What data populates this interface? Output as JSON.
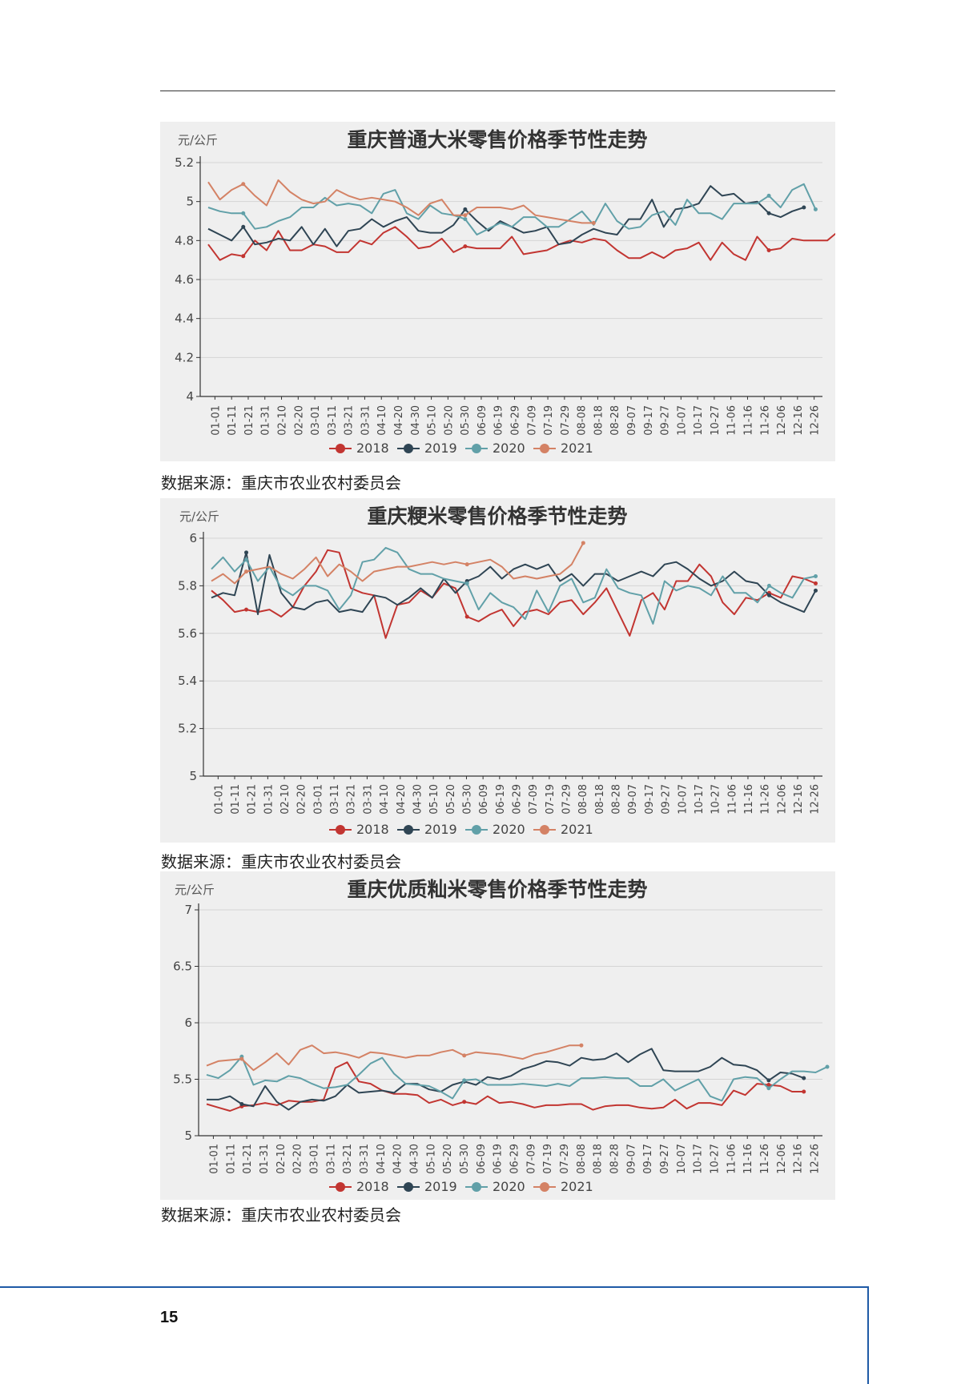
{
  "page_number": "15",
  "colors": {
    "2018": "#c23531",
    "2019": "#2f4554",
    "2020": "#61a0a8",
    "2021": "#d48265",
    "panel": "#efefef",
    "grid": "#d4d4d4"
  },
  "x_labels": [
    "01-01",
    "01-11",
    "01-21",
    "01-31",
    "02-10",
    "02-20",
    "03-01",
    "03-11",
    "03-21",
    "03-31",
    "04-10",
    "04-20",
    "04-30",
    "05-10",
    "05-20",
    "05-30",
    "06-09",
    "06-19",
    "06-29",
    "07-09",
    "07-19",
    "07-29",
    "08-08",
    "08-18",
    "08-28",
    "09-07",
    "09-17",
    "09-27",
    "10-07",
    "10-17",
    "10-27",
    "11-06",
    "11-16",
    "11-26",
    "12-06",
    "12-16",
    "12-26"
  ],
  "charts": [
    {
      "title": "重庆普通大米零售价格季节性走势",
      "unit": "元/公斤",
      "source": "数据来源：重庆市农业农村委员会"
    },
    {
      "title": "重庆粳米零售价格季节性走势",
      "unit": "元/公斤",
      "source": "数据来源：重庆市农业农村委员会"
    },
    {
      "title": "重庆优质籼米零售价格季节性走势",
      "unit": "元/公斤",
      "source": "数据来源：重庆市农业农村委员会"
    }
  ],
  "chart_data": [
    {
      "type": "line",
      "title": "重庆普通大米零售价格季节性走势",
      "ylabel": "元/公斤",
      "ylim": [
        4,
        5.2
      ],
      "yticks": [
        4,
        4.2,
        4.4,
        4.6,
        4.8,
        5,
        5.2
      ],
      "ytick_labels": [
        "4",
        "4.2",
        "4.4",
        "4.6",
        "4.8",
        "5",
        "5.2"
      ],
      "legend": "bottom",
      "grid": true,
      "series": [
        {
          "name": "2018",
          "values": [
            4.78,
            4.7,
            4.73,
            4.72,
            4.8,
            4.75,
            4.85,
            4.75,
            4.75,
            4.78,
            4.77,
            4.74,
            4.74,
            4.8,
            4.78,
            4.84,
            4.87,
            4.82,
            4.76,
            4.77,
            4.81,
            4.74,
            4.77,
            4.76,
            4.76,
            4.76,
            4.82,
            4.73,
            4.74,
            4.75,
            4.78,
            4.8,
            4.79,
            4.81,
            4.8,
            4.75,
            4.71,
            4.71,
            4.74,
            4.71,
            4.75,
            4.76,
            4.79,
            4.7,
            4.79,
            4.73,
            4.7,
            4.82,
            4.75,
            4.76,
            4.81,
            4.8,
            4.8,
            4.8,
            4.85
          ]
        },
        {
          "name": "2019",
          "values": [
            4.86,
            4.83,
            4.8,
            4.87,
            4.78,
            4.79,
            4.81,
            4.8,
            4.87,
            4.78,
            4.86,
            4.77,
            4.85,
            4.86,
            4.91,
            4.87,
            4.9,
            4.92,
            4.85,
            4.84,
            4.84,
            4.88,
            4.96,
            4.9,
            4.85,
            4.9,
            4.87,
            4.84,
            4.85,
            4.87,
            4.78,
            4.79,
            4.83,
            4.86,
            4.84,
            4.83,
            4.91,
            4.91,
            5.01,
            4.87,
            4.96,
            4.97,
            4.99,
            5.08,
            5.03,
            5.04,
            4.99,
            5.0,
            4.94,
            4.92,
            4.95,
            4.97
          ]
        },
        {
          "name": "2020",
          "values": [
            4.97,
            4.95,
            4.94,
            4.94,
            4.86,
            4.87,
            4.9,
            4.92,
            4.97,
            4.97,
            5.02,
            4.98,
            4.99,
            4.98,
            4.94,
            5.04,
            5.06,
            4.94,
            4.91,
            4.98,
            4.94,
            4.93,
            4.91,
            4.83,
            4.86,
            4.89,
            4.87,
            4.92,
            4.92,
            4.87,
            4.87,
            4.91,
            4.95,
            4.88,
            4.99,
            4.9,
            4.86,
            4.87,
            4.93,
            4.95,
            4.88,
            5.01,
            4.94,
            4.94,
            4.91,
            4.99,
            4.99,
            4.99,
            5.03,
            4.97,
            5.06,
            5.09,
            4.96
          ]
        },
        {
          "name": "2021",
          "values": [
            5.1,
            5.01,
            5.06,
            5.09,
            5.03,
            4.98,
            5.11,
            5.05,
            5.01,
            4.99,
            5.0,
            5.06,
            5.03,
            5.01,
            5.02,
            5.01,
            5.0,
            4.97,
            4.93,
            4.99,
            5.01,
            4.93,
            4.93,
            4.97,
            4.97,
            4.97,
            4.96,
            4.98,
            4.93,
            4.92,
            4.91,
            4.9,
            4.89,
            4.89
          ]
        }
      ]
    },
    {
      "type": "line",
      "title": "重庆粳米零售价格季节性走势",
      "ylabel": "元/公斤",
      "ylim": [
        5,
        6
      ],
      "yticks": [
        5,
        5.2,
        5.4,
        5.6,
        5.8,
        6
      ],
      "ytick_labels": [
        "5",
        "5.2",
        "5.4",
        "5.6",
        "5.8",
        "6"
      ],
      "legend": "bottom",
      "grid": true,
      "series": [
        {
          "name": "2018",
          "values": [
            5.78,
            5.74,
            5.69,
            5.7,
            5.69,
            5.7,
            5.67,
            5.71,
            5.8,
            5.86,
            5.95,
            5.94,
            5.79,
            5.77,
            5.76,
            5.58,
            5.72,
            5.73,
            5.78,
            5.75,
            5.81,
            5.79,
            5.67,
            5.65,
            5.68,
            5.7,
            5.63,
            5.69,
            5.7,
            5.68,
            5.73,
            5.74,
            5.68,
            5.73,
            5.79,
            5.69,
            5.59,
            5.74,
            5.77,
            5.7,
            5.82,
            5.82,
            5.89,
            5.84,
            5.73,
            5.68,
            5.75,
            5.74,
            5.77,
            5.75,
            5.84,
            5.83,
            5.81
          ]
        },
        {
          "name": "2019",
          "values": [
            5.75,
            5.77,
            5.76,
            5.94,
            5.68,
            5.93,
            5.77,
            5.71,
            5.7,
            5.73,
            5.74,
            5.69,
            5.7,
            5.69,
            5.76,
            5.75,
            5.72,
            5.75,
            5.79,
            5.75,
            5.83,
            5.77,
            5.82,
            5.84,
            5.88,
            5.83,
            5.87,
            5.89,
            5.87,
            5.89,
            5.82,
            5.85,
            5.8,
            5.85,
            5.85,
            5.82,
            5.84,
            5.86,
            5.84,
            5.89,
            5.9,
            5.87,
            5.83,
            5.8,
            5.82,
            5.86,
            5.82,
            5.81,
            5.76,
            5.73,
            5.71,
            5.69,
            5.78
          ]
        },
        {
          "name": "2020",
          "values": [
            5.87,
            5.92,
            5.86,
            5.91,
            5.82,
            5.88,
            5.79,
            5.76,
            5.8,
            5.8,
            5.78,
            5.7,
            5.76,
            5.9,
            5.91,
            5.96,
            5.94,
            5.87,
            5.85,
            5.85,
            5.83,
            5.82,
            5.81,
            5.7,
            5.77,
            5.73,
            5.71,
            5.66,
            5.78,
            5.69,
            5.8,
            5.83,
            5.73,
            5.75,
            5.87,
            5.79,
            5.77,
            5.76,
            5.64,
            5.82,
            5.78,
            5.8,
            5.79,
            5.76,
            5.84,
            5.77,
            5.77,
            5.73,
            5.8,
            5.77,
            5.75,
            5.83,
            5.84
          ]
        },
        {
          "name": "2021",
          "values": [
            5.82,
            5.85,
            5.81,
            5.86,
            5.87,
            5.88,
            5.85,
            5.83,
            5.87,
            5.92,
            5.84,
            5.89,
            5.86,
            5.82,
            5.86,
            5.87,
            5.88,
            5.88,
            5.89,
            5.9,
            5.89,
            5.9,
            5.89,
            5.9,
            5.91,
            5.88,
            5.83,
            5.84,
            5.83,
            5.84,
            5.85,
            5.89,
            5.98
          ]
        }
      ]
    },
    {
      "type": "line",
      "title": "重庆优质籼米零售价格季节性走势",
      "ylabel": "元/公斤",
      "ylim": [
        5,
        7
      ],
      "yticks": [
        5,
        5.5,
        6,
        6.5,
        7
      ],
      "ytick_labels": [
        "5",
        "5.5",
        "6",
        "6.5",
        "7"
      ],
      "legend": "bottom",
      "grid": true,
      "series": [
        {
          "name": "2018",
          "values": [
            5.28,
            5.25,
            5.22,
            5.26,
            5.27,
            5.29,
            5.27,
            5.31,
            5.3,
            5.3,
            5.32,
            5.6,
            5.65,
            5.48,
            5.46,
            5.4,
            5.37,
            5.37,
            5.36,
            5.29,
            5.32,
            5.27,
            5.3,
            5.28,
            5.35,
            5.29,
            5.3,
            5.28,
            5.25,
            5.27,
            5.27,
            5.28,
            5.28,
            5.23,
            5.26,
            5.27,
            5.27,
            5.25,
            5.24,
            5.25,
            5.32,
            5.24,
            5.29,
            5.29,
            5.27,
            5.4,
            5.36,
            5.46,
            5.45,
            5.44,
            5.39,
            5.39
          ]
        },
        {
          "name": "2019",
          "values": [
            5.32,
            5.32,
            5.35,
            5.28,
            5.26,
            5.44,
            5.3,
            5.23,
            5.3,
            5.32,
            5.31,
            5.35,
            5.45,
            5.38,
            5.39,
            5.4,
            5.38,
            5.46,
            5.46,
            5.41,
            5.39,
            5.45,
            5.48,
            5.45,
            5.52,
            5.5,
            5.53,
            5.59,
            5.62,
            5.66,
            5.65,
            5.62,
            5.69,
            5.67,
            5.68,
            5.73,
            5.65,
            5.72,
            5.77,
            5.58,
            5.57,
            5.57,
            5.57,
            5.61,
            5.69,
            5.63,
            5.62,
            5.58,
            5.49,
            5.56,
            5.55,
            5.51
          ]
        },
        {
          "name": "2020",
          "values": [
            5.54,
            5.51,
            5.58,
            5.7,
            5.45,
            5.49,
            5.48,
            5.53,
            5.51,
            5.46,
            5.42,
            5.43,
            5.45,
            5.54,
            5.64,
            5.69,
            5.55,
            5.46,
            5.45,
            5.44,
            5.39,
            5.33,
            5.49,
            5.5,
            5.45,
            5.45,
            5.45,
            5.46,
            5.45,
            5.44,
            5.46,
            5.44,
            5.51,
            5.51,
            5.52,
            5.51,
            5.51,
            5.44,
            5.44,
            5.5,
            5.4,
            5.45,
            5.5,
            5.35,
            5.31,
            5.5,
            5.52,
            5.51,
            5.42,
            5.5,
            5.57,
            5.57,
            5.56,
            5.61
          ]
        },
        {
          "name": "2021",
          "values": [
            5.62,
            5.66,
            5.67,
            5.68,
            5.58,
            5.65,
            5.73,
            5.63,
            5.76,
            5.8,
            5.73,
            5.74,
            5.72,
            5.69,
            5.74,
            5.73,
            5.71,
            5.69,
            5.71,
            5.71,
            5.74,
            5.76,
            5.71,
            5.74,
            5.73,
            5.72,
            5.7,
            5.68,
            5.72,
            5.74,
            5.77,
            5.8,
            5.8
          ]
        }
      ]
    }
  ]
}
